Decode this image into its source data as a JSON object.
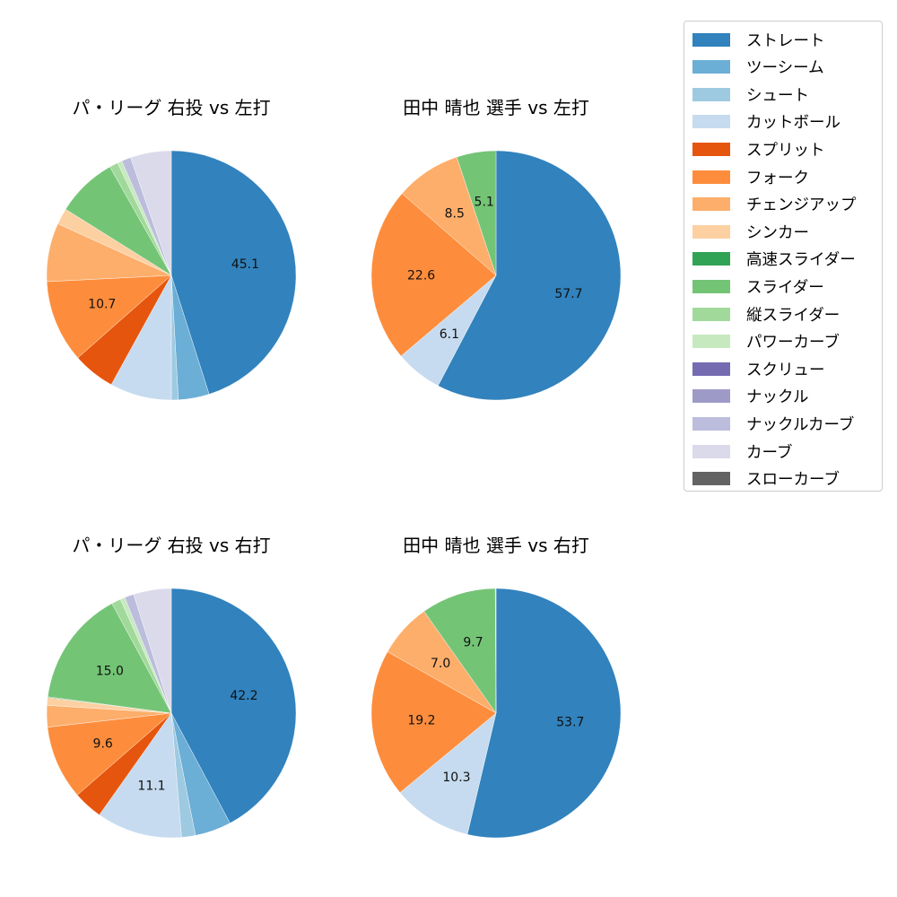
{
  "legend": {
    "items": [
      {
        "label": "ストレート",
        "color": "#3182bd"
      },
      {
        "label": "ツーシーム",
        "color": "#6baed6"
      },
      {
        "label": "シュート",
        "color": "#9ecae1"
      },
      {
        "label": "カットボール",
        "color": "#c6dbef"
      },
      {
        "label": "スプリット",
        "color": "#e6550d"
      },
      {
        "label": "フォーク",
        "color": "#fd8d3c"
      },
      {
        "label": "チェンジアップ",
        "color": "#fdae6b"
      },
      {
        "label": "シンカー",
        "color": "#fdd0a2"
      },
      {
        "label": "高速スライダー",
        "color": "#31a354"
      },
      {
        "label": "スライダー",
        "color": "#74c476"
      },
      {
        "label": "縦スライダー",
        "color": "#a1d99b"
      },
      {
        "label": "パワーカーブ",
        "color": "#c7e9c0"
      },
      {
        "label": "スクリュー",
        "color": "#756bb1"
      },
      {
        "label": "ナックル",
        "color": "#9e9ac8"
      },
      {
        "label": "ナックルカーブ",
        "color": "#bcbddc"
      },
      {
        "label": "カーブ",
        "color": "#dadaeb"
      },
      {
        "label": "スローカーブ",
        "color": "#636363"
      }
    ]
  },
  "chart_data": [
    {
      "type": "pie",
      "title": "パ・リーグ 右投 vs 左打",
      "categories": [
        "ストレート",
        "ツーシーム",
        "シュート",
        "カットボール",
        "スプリット",
        "フォーク",
        "チェンジアップ",
        "シンカー",
        "スライダー",
        "縦スライダー",
        "パワーカーブ",
        "ナックルカーブ",
        "カーブ"
      ],
      "values": [
        45.1,
        4.0,
        0.9,
        8.0,
        5.5,
        10.7,
        7.6,
        2.1,
        7.9,
        1.1,
        0.6,
        1.2,
        5.3
      ],
      "colors": [
        "#3182bd",
        "#6baed6",
        "#9ecae1",
        "#c6dbef",
        "#e6550d",
        "#fd8d3c",
        "#fdae6b",
        "#fdd0a2",
        "#74c476",
        "#a1d99b",
        "#c7e9c0",
        "#bcbddc",
        "#dadaeb"
      ],
      "labels_shown": {
        "ストレート": "45.1",
        "フォーク": "10.7"
      },
      "start_angle": 90,
      "direction": "clockwise"
    },
    {
      "type": "pie",
      "title": "田中 晴也 選手 vs 左打",
      "categories": [
        "ストレート",
        "カットボール",
        "フォーク",
        "チェンジアップ",
        "スライダー"
      ],
      "values": [
        57.7,
        6.1,
        22.6,
        8.5,
        5.1
      ],
      "colors": [
        "#3182bd",
        "#c6dbef",
        "#fd8d3c",
        "#fdae6b",
        "#74c476"
      ],
      "labels_shown": {
        "ストレート": "57.7",
        "カットボール": "6.1",
        "フォーク": "22.6",
        "チェンジアップ": "8.5",
        "スライダー": "5.1"
      },
      "start_angle": 90,
      "direction": "clockwise"
    },
    {
      "type": "pie",
      "title": "パ・リーグ 右投 vs 右打",
      "categories": [
        "ストレート",
        "ツーシーム",
        "シュート",
        "カットボール",
        "スプリット",
        "フォーク",
        "チェンジアップ",
        "シンカー",
        "高速スライダー",
        "スライダー",
        "縦スライダー",
        "パワーカーブ",
        "ナックルカーブ",
        "カーブ"
      ],
      "values": [
        42.2,
        4.7,
        1.8,
        11.1,
        3.8,
        9.6,
        2.8,
        1.0,
        0.1,
        15.0,
        1.2,
        0.6,
        1.2,
        4.9
      ],
      "colors": [
        "#3182bd",
        "#6baed6",
        "#9ecae1",
        "#c6dbef",
        "#e6550d",
        "#fd8d3c",
        "#fdae6b",
        "#fdd0a2",
        "#31a354",
        "#74c476",
        "#a1d99b",
        "#c7e9c0",
        "#bcbddc",
        "#dadaeb"
      ],
      "labels_shown": {
        "ストレート": "42.2",
        "カットボール": "11.1",
        "フォーク": "9.6",
        "スライダー": "15.0"
      },
      "start_angle": 90,
      "direction": "clockwise"
    },
    {
      "type": "pie",
      "title": "田中 晴也 選手 vs 右打",
      "categories": [
        "ストレート",
        "カットボール",
        "フォーク",
        "チェンジアップ",
        "スライダー",
        "カーブ"
      ],
      "values": [
        53.7,
        10.3,
        19.2,
        7.0,
        9.7,
        0.1
      ],
      "colors": [
        "#3182bd",
        "#c6dbef",
        "#fd8d3c",
        "#fdae6b",
        "#74c476",
        "#dadaeb"
      ],
      "labels_shown": {
        "ストレート": "53.7",
        "カットボール": "10.3",
        "フォーク": "19.2",
        "チェンジアップ": "7.0",
        "スライダー": "9.7"
      },
      "start_angle": 90,
      "direction": "clockwise"
    }
  ]
}
